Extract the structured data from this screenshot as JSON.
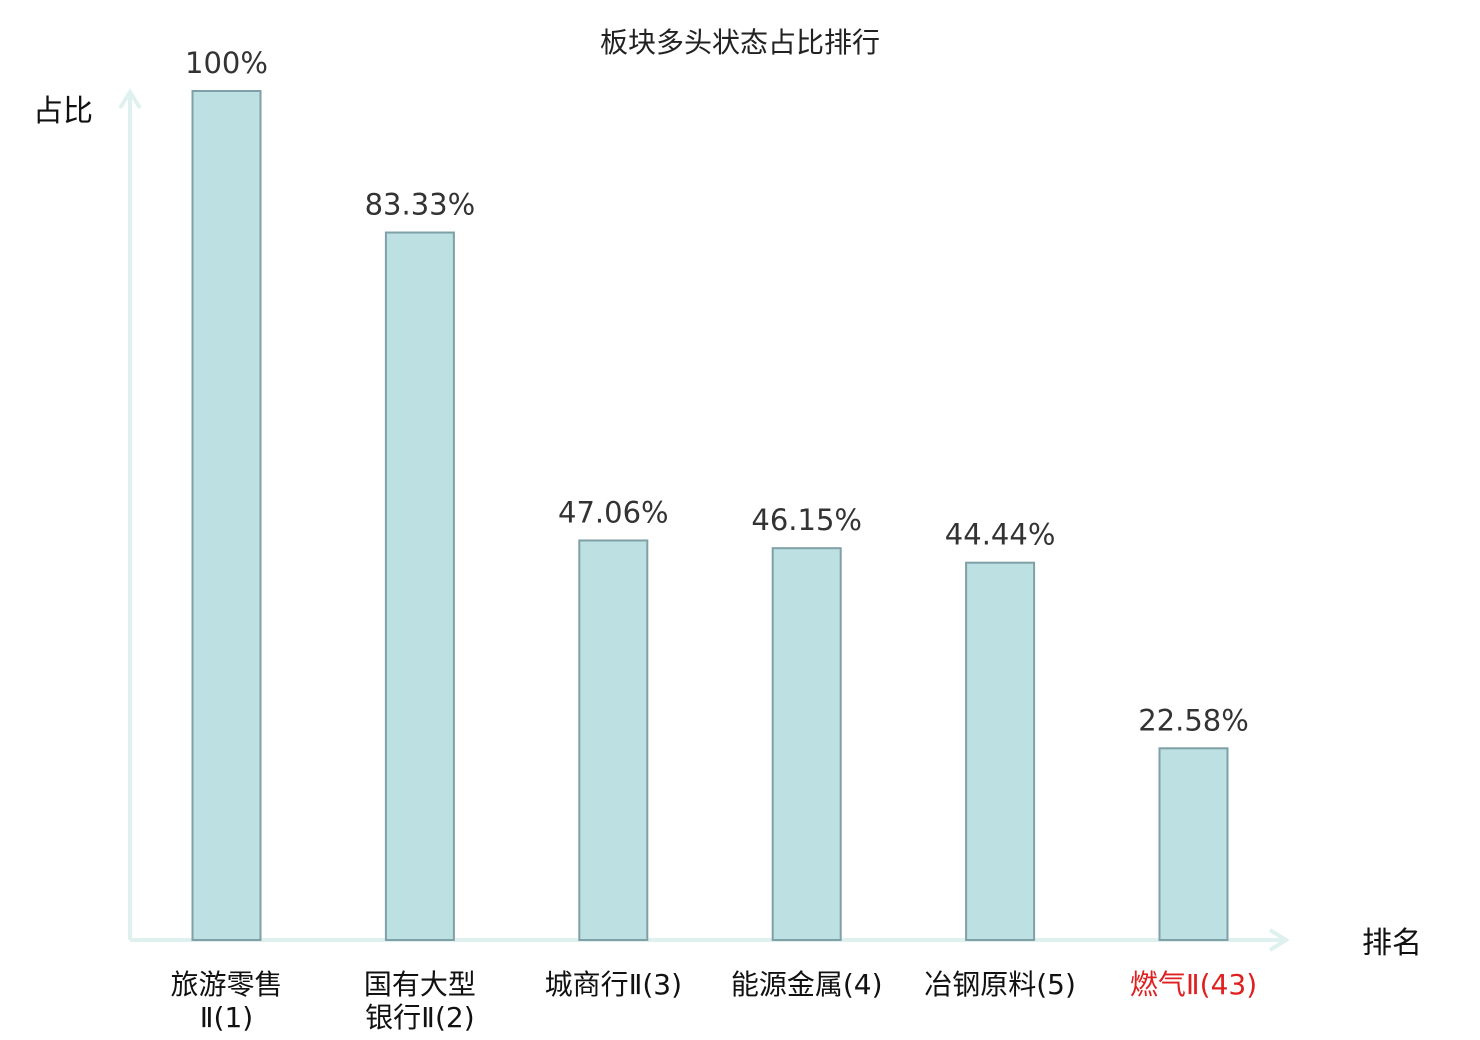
{
  "chart_data": {
    "type": "bar",
    "title": "板块多头状态占比排行",
    "ylabel": "占比",
    "xlabel": "排名",
    "ylim": [
      0,
      100
    ],
    "grid": false,
    "categories": [
      "旅游零售Ⅱ(1)",
      "国有大型银行Ⅱ(2)",
      "城商行Ⅱ(3)",
      "能源金属(4)",
      "冶钢原料(5)",
      "燃气Ⅱ(43)"
    ],
    "category_lines": [
      [
        "旅游零售",
        "Ⅱ(1)"
      ],
      [
        "国有大型",
        "银行Ⅱ(2)"
      ],
      [
        "城商行Ⅱ(3)"
      ],
      [
        "能源金属(4)"
      ],
      [
        "冶钢原料(5)"
      ],
      [
        "燃气Ⅱ(43)"
      ]
    ],
    "values": [
      100,
      83.33,
      47.06,
      46.15,
      44.44,
      22.58
    ],
    "value_labels": [
      "100%",
      "83.33%",
      "47.06%",
      "46.15%",
      "44.44%",
      "22.58%"
    ],
    "highlight_index": 5,
    "colors": {
      "bar_fill": "#bde0e3",
      "bar_stroke": "#7fa0a6",
      "axis": "#dff1ee",
      "highlight_label": "#e02020"
    }
  }
}
